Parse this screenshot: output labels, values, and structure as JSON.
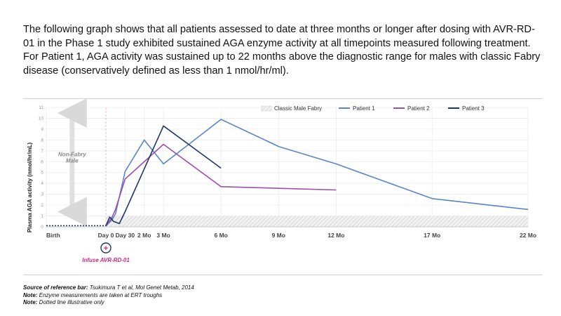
{
  "intro_text": "The following graph shows that all patients assessed to date at three months or longer after dosing with AVR-RD-01 in the Phase 1 study exhibited sustained AGA enzyme activity at all timepoints measured following treatment. For Patient 1, AGA activity was sustained up to 22 months above the diagnostic range for males with classic Fabry disease (conservatively defined as less than 1 nmol/hr/ml).",
  "footnotes": [
    {
      "label": "Source of reference bar:",
      "text": " Tsukimura T et al, Mol Genet Metab, 2014"
    },
    {
      "label": "Note:",
      "text": " Enzyme measurements are taken at ERT troughs"
    },
    {
      "label": "Note:",
      "text": " Dotted line illustrative only"
    }
  ],
  "colors": {
    "patient1": "#5b84c9",
    "patient2": "#9d4fa8",
    "patient3": "#1f3763",
    "annotation": "#d0287e",
    "reference_bar": "#e2e2e2"
  },
  "chart_data": {
    "type": "line",
    "title": "",
    "ylabel": "Plasma AGA activity (nmol/hr/mL)",
    "xlabel": "",
    "ylim": [
      0,
      11
    ],
    "yticks": [
      0,
      1,
      2,
      3,
      4,
      5,
      6,
      7,
      8,
      9,
      10,
      11
    ],
    "xlim": [
      -3,
      22
    ],
    "xticks": [
      {
        "value": -3,
        "label": "Birth"
      },
      {
        "value": 0,
        "label": "Day 0"
      },
      {
        "value": 1,
        "label": "Day 30"
      },
      {
        "value": 2,
        "label": "2 Mo"
      },
      {
        "value": 3,
        "label": "3 Mo"
      },
      {
        "value": 6,
        "label": "6 Mo"
      },
      {
        "value": 9,
        "label": "9 Mo"
      },
      {
        "value": 12,
        "label": "12 Mo"
      },
      {
        "value": 17,
        "label": "17 Mo"
      },
      {
        "value": 22,
        "label": "22 Mo"
      }
    ],
    "reference_band": {
      "name": "Classic Male Fabry",
      "y": [
        0,
        1
      ]
    },
    "range_annotation": {
      "label": "Non-Fabry Male",
      "y": [
        1,
        11
      ]
    },
    "event_annotation": {
      "label": "Infuse AVR-RD-01",
      "symbol": "+",
      "x": 0
    },
    "dotted_baseline": {
      "x": [
        -3,
        0
      ],
      "y": 0.1
    },
    "series": [
      {
        "name": "Patient 1",
        "x": [
          0,
          0.3,
          0.5,
          1,
          2,
          3,
          6,
          9,
          12,
          17,
          22
        ],
        "y": [
          0.1,
          0.6,
          1.2,
          5.1,
          8.0,
          5.8,
          9.9,
          7.4,
          5.8,
          2.6,
          1.6
        ]
      },
      {
        "name": "Patient 2",
        "x": [
          0,
          0.3,
          0.5,
          1,
          3,
          6,
          12
        ],
        "y": [
          0.1,
          0.8,
          1.6,
          4.4,
          7.6,
          3.7,
          3.4
        ]
      },
      {
        "name": "Patient 3",
        "x": [
          0,
          0.2,
          0.4,
          0.7,
          1,
          3,
          6
        ],
        "y": [
          0.1,
          0.9,
          0.5,
          0.3,
          1.4,
          9.3,
          5.4
        ]
      }
    ]
  }
}
